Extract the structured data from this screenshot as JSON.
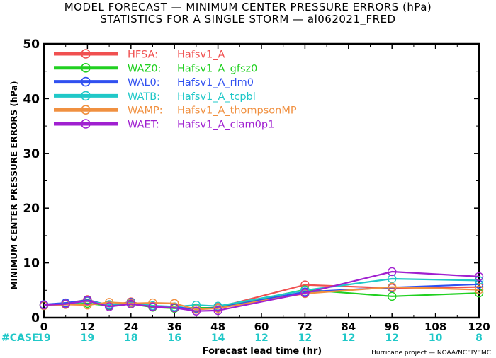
{
  "title_line1": "MODEL FORECAST — MINIMUM CENTER PRESSURE ERRORS (hPa)",
  "title_line2": "STATISTICS FOR A SINGLE STORM — al062021_FRED",
  "credit": "Hurricane project — NOAA/NCEP/EMC",
  "case_label": "#CASE",
  "case_color": "#20c8c8",
  "chart_data": {
    "type": "line",
    "xlabel": "Forecast lead time (hr)",
    "ylabel": "MINIMUM CENTER PRESSURE ERRORS (hPa)",
    "xlim": [
      0,
      120
    ],
    "ylim": [
      0,
      50
    ],
    "x_ticks": [
      0,
      12,
      24,
      36,
      48,
      60,
      72,
      84,
      96,
      108,
      120
    ],
    "y_ticks": [
      0,
      10,
      20,
      30,
      40,
      50
    ],
    "grid": false,
    "legend_position": "top-left",
    "x": [
      0,
      6,
      12,
      18,
      24,
      30,
      36,
      42,
      48,
      72,
      96,
      120
    ],
    "case_counts": [
      {
        "x": 0,
        "n": "19"
      },
      {
        "x": 12,
        "n": "19"
      },
      {
        "x": 24,
        "n": "18"
      },
      {
        "x": 36,
        "n": "16"
      },
      {
        "x": 48,
        "n": "14"
      },
      {
        "x": 60,
        "n": "12"
      },
      {
        "x": 72,
        "n": "12"
      },
      {
        "x": 84,
        "n": "12"
      },
      {
        "x": 96,
        "n": "12"
      },
      {
        "x": 108,
        "n": "10"
      },
      {
        "x": 120,
        "n": "8"
      }
    ],
    "series": [
      {
        "name": "HFSA:",
        "desc": "Hafsv1_A",
        "color": "#f05050",
        "values": [
          2.3,
          2.6,
          3.3,
          2.2,
          2.9,
          2.0,
          1.8,
          1.6,
          1.9,
          6.0,
          5.4,
          5.6
        ]
      },
      {
        "name": "WAZ0:",
        "desc": "Hafsv1_A_gfsz0",
        "color": "#20d020",
        "values": [
          2.2,
          2.4,
          2.6,
          2.2,
          2.5,
          1.9,
          1.7,
          1.8,
          1.8,
          5.1,
          3.9,
          4.5
        ]
      },
      {
        "name": "WAL0:",
        "desc": "Hafsv1_A_rlm0",
        "color": "#3050f0",
        "values": [
          2.4,
          2.7,
          3.2,
          2.3,
          2.8,
          2.1,
          1.9,
          1.6,
          1.8,
          4.7,
          5.5,
          6.1
        ]
      },
      {
        "name": "WATB:",
        "desc": "Hafsv1_A_tcpbl",
        "color": "#20c8c8",
        "values": [
          2.3,
          2.5,
          3.0,
          2.4,
          2.7,
          2.2,
          2.0,
          2.3,
          2.1,
          5.0,
          7.1,
          6.8
        ]
      },
      {
        "name": "WAMP:",
        "desc": "Hafsv1_A_thompsonMP",
        "color": "#f09040",
        "values": [
          2.2,
          2.4,
          2.3,
          2.8,
          2.6,
          2.7,
          2.6,
          1.5,
          1.7,
          4.4,
          5.6,
          5.1
        ]
      },
      {
        "name": "WAET:",
        "desc": "Hafsv1_A_clam0p1",
        "color": "#a020d0",
        "values": [
          2.3,
          2.5,
          3.1,
          2.0,
          2.5,
          2.0,
          1.8,
          1.2,
          1.3,
          4.5,
          8.4,
          7.5
        ]
      }
    ]
  }
}
